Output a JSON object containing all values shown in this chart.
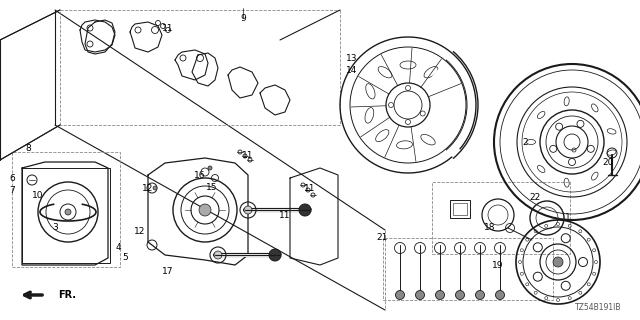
{
  "background_color": "#ffffff",
  "line_color": "#1a1a1a",
  "gray_color": "#888888",
  "diagram_code": "TZ54B191IB",
  "figsize": [
    6.4,
    3.2
  ],
  "dpi": 100,
  "labels": [
    [
      "11",
      168,
      28
    ],
    [
      "11",
      248,
      155
    ],
    [
      "11",
      310,
      188
    ],
    [
      "11",
      285,
      215
    ],
    [
      "9",
      243,
      18
    ],
    [
      "8",
      28,
      148
    ],
    [
      "6",
      12,
      178
    ],
    [
      "7",
      12,
      190
    ],
    [
      "10",
      38,
      195
    ],
    [
      "3",
      55,
      228
    ],
    [
      "4",
      118,
      248
    ],
    [
      "5",
      125,
      258
    ],
    [
      "12",
      148,
      188
    ],
    [
      "12",
      140,
      232
    ],
    [
      "16",
      200,
      175
    ],
    [
      "15",
      212,
      187
    ],
    [
      "17",
      168,
      272
    ],
    [
      "13",
      352,
      58
    ],
    [
      "14",
      352,
      70
    ],
    [
      "2",
      525,
      142
    ],
    [
      "20",
      608,
      162
    ],
    [
      "21",
      382,
      238
    ],
    [
      "22",
      535,
      198
    ],
    [
      "18",
      490,
      228
    ],
    [
      "19",
      498,
      265
    ],
    [
      "1",
      568,
      218
    ]
  ]
}
